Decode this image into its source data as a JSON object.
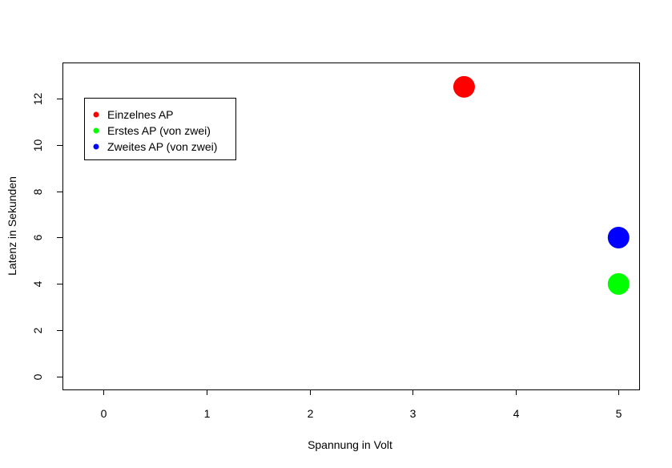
{
  "chart_data": {
    "type": "scatter",
    "title": "",
    "xlabel": "Spannung in Volt",
    "ylabel": "Latenz in Sekunden",
    "xlim": [
      -0.4,
      5.2
    ],
    "ylim": [
      -0.55,
      13.55
    ],
    "xticks": [
      0,
      1,
      2,
      3,
      4,
      5
    ],
    "yticks": [
      0,
      2,
      4,
      6,
      8,
      10,
      12
    ],
    "grid": false,
    "legend_position": "top-left",
    "series": [
      {
        "name": "Einzelnes AP",
        "color": "#ff0000",
        "points": [
          {
            "x": 3.5,
            "y": 12.5
          }
        ]
      },
      {
        "name": "Erstes AP (von zwei)",
        "color": "#00ff00",
        "points": [
          {
            "x": 5,
            "y": 4
          }
        ]
      },
      {
        "name": "Zweites AP (von zwei)",
        "color": "#0000ff",
        "points": [
          {
            "x": 5,
            "y": 6
          }
        ]
      }
    ]
  }
}
